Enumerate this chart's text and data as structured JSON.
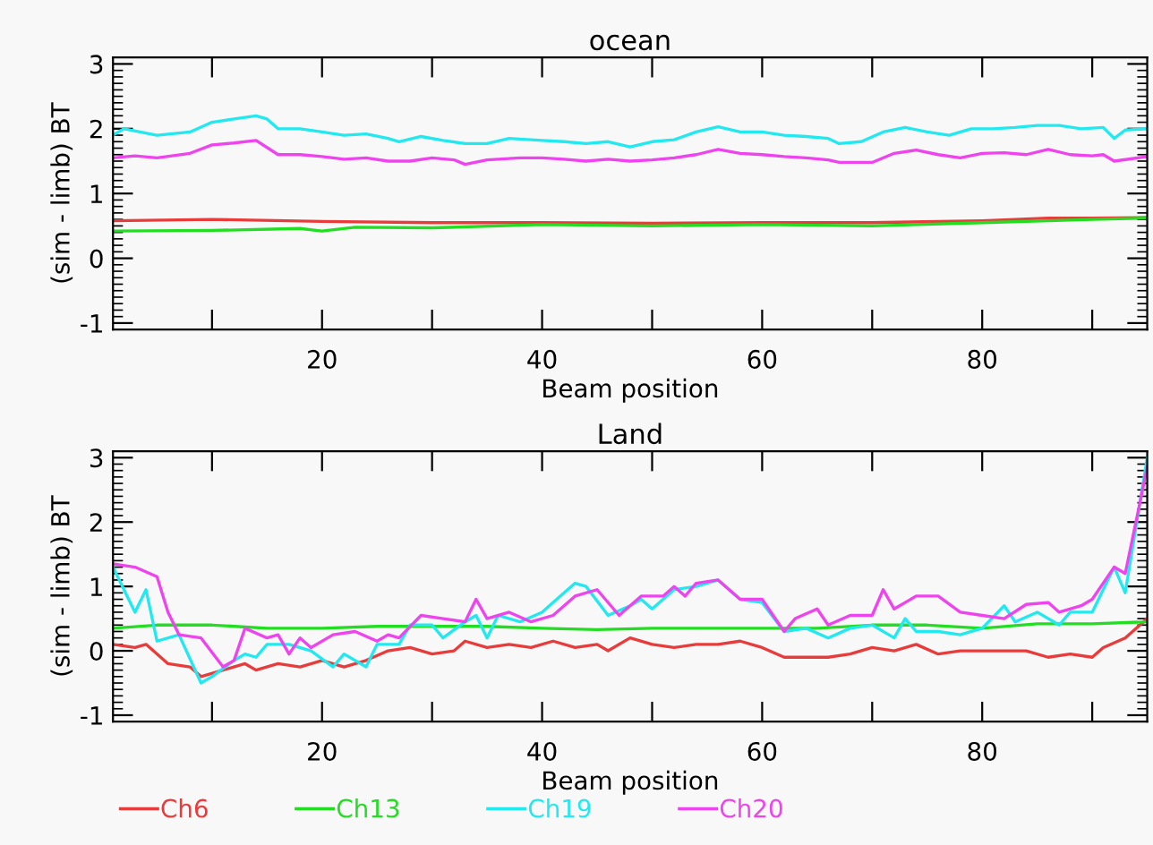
{
  "chart_data": [
    {
      "type": "line",
      "title": "ocean",
      "xlabel": "Beam position",
      "ylabel": "(sim - limb) BT",
      "xlim": [
        1,
        95
      ],
      "ylim": [
        -1.1,
        3.1
      ],
      "xticks": [
        {
          "value": 10,
          "label": null
        },
        20,
        {
          "value": 30,
          "label": null
        },
        40,
        {
          "value": 50,
          "label": null
        },
        60,
        {
          "value": 70,
          "label": null
        },
        80,
        {
          "value": 90,
          "label": null
        }
      ],
      "yticks": [
        -1,
        0,
        1,
        2,
        3
      ],
      "grid": false,
      "legend": false,
      "series": [
        {
          "color": "#e83c3c",
          "x": [
            1,
            10,
            20,
            30,
            40,
            50,
            60,
            70,
            80,
            86,
            90,
            95
          ],
          "values": [
            0.58,
            0.6,
            0.57,
            0.55,
            0.55,
            0.54,
            0.55,
            0.55,
            0.58,
            0.62,
            0.62,
            0.63
          ]
        },
        {
          "color": "#22dd22",
          "x": [
            1,
            10,
            18,
            20,
            23,
            30,
            40,
            50,
            60,
            70,
            80,
            86,
            90,
            95
          ],
          "values": [
            0.42,
            0.43,
            0.46,
            0.42,
            0.48,
            0.47,
            0.52,
            0.5,
            0.52,
            0.5,
            0.55,
            0.58,
            0.6,
            0.62
          ]
        },
        {
          "color": "#22e8f0",
          "x": [
            1,
            2,
            5,
            8,
            10,
            12,
            14,
            15,
            16,
            18,
            20,
            22,
            24,
            26,
            27,
            29,
            31,
            33,
            35,
            37,
            40,
            42,
            44,
            46,
            48,
            50,
            52,
            54,
            56,
            58,
            60,
            62,
            64,
            66,
            67,
            69,
            71,
            73,
            75,
            77,
            79,
            81,
            83,
            85,
            87,
            89,
            91,
            92,
            93,
            95
          ],
          "values": [
            1.9,
            2.0,
            1.9,
            1.95,
            2.1,
            2.15,
            2.2,
            2.15,
            2.0,
            2.0,
            1.95,
            1.9,
            1.92,
            1.85,
            1.8,
            1.88,
            1.82,
            1.77,
            1.77,
            1.85,
            1.82,
            1.8,
            1.77,
            1.8,
            1.72,
            1.8,
            1.83,
            1.95,
            2.03,
            1.95,
            1.95,
            1.9,
            1.88,
            1.85,
            1.77,
            1.8,
            1.95,
            2.02,
            1.95,
            1.9,
            2.0,
            2.0,
            2.02,
            2.05,
            2.05,
            2.0,
            2.02,
            1.85,
            1.98,
            2.0
          ]
        },
        {
          "color": "#ee44ee",
          "x": [
            1,
            3,
            5,
            8,
            10,
            12,
            14,
            16,
            18,
            20,
            22,
            24,
            26,
            28,
            30,
            32,
            33,
            35,
            38,
            40,
            42,
            44,
            46,
            48,
            50,
            52,
            54,
            56,
            58,
            60,
            62,
            64,
            66,
            67,
            70,
            72,
            74,
            76,
            78,
            80,
            82,
            84,
            86,
            88,
            90,
            91,
            92,
            95
          ],
          "values": [
            1.55,
            1.58,
            1.55,
            1.62,
            1.75,
            1.78,
            1.82,
            1.6,
            1.6,
            1.57,
            1.53,
            1.55,
            1.5,
            1.5,
            1.55,
            1.52,
            1.45,
            1.52,
            1.55,
            1.55,
            1.53,
            1.5,
            1.53,
            1.5,
            1.52,
            1.55,
            1.6,
            1.68,
            1.62,
            1.6,
            1.57,
            1.55,
            1.52,
            1.48,
            1.48,
            1.62,
            1.67,
            1.6,
            1.55,
            1.62,
            1.63,
            1.6,
            1.68,
            1.6,
            1.58,
            1.6,
            1.5,
            1.57
          ]
        }
      ]
    },
    {
      "type": "line",
      "title": "Land",
      "xlabel": "Beam position",
      "ylabel": "(sim - limb) BT",
      "xlim": [
        1,
        95
      ],
      "ylim": [
        -1.1,
        3.1
      ],
      "xticks": [
        {
          "value": 10,
          "label": null
        },
        20,
        {
          "value": 30,
          "label": null
        },
        40,
        {
          "value": 50,
          "label": null
        },
        60,
        {
          "value": 70,
          "label": null
        },
        80,
        {
          "value": 90,
          "label": null
        }
      ],
      "yticks": [
        -1,
        0,
        1,
        2,
        3
      ],
      "grid": false,
      "legend": "bottom",
      "series": [
        {
          "name": "Ch6",
          "color": "#e83c3c",
          "x": [
            1,
            3,
            4,
            6,
            8,
            9,
            11,
            13,
            14,
            16,
            18,
            20,
            22,
            24,
            26,
            28,
            30,
            32,
            33,
            35,
            37,
            39,
            41,
            43,
            45,
            46,
            48,
            50,
            52,
            54,
            56,
            58,
            60,
            62,
            64,
            66,
            68,
            70,
            72,
            74,
            76,
            78,
            80,
            82,
            84,
            86,
            88,
            90,
            91,
            93,
            95
          ],
          "values": [
            0.1,
            0.05,
            0.1,
            -0.2,
            -0.25,
            -0.4,
            -0.3,
            -0.2,
            -0.3,
            -0.2,
            -0.25,
            -0.15,
            -0.25,
            -0.15,
            0.0,
            0.05,
            -0.05,
            0.0,
            0.15,
            0.05,
            0.1,
            0.05,
            0.15,
            0.05,
            0.1,
            0.0,
            0.2,
            0.1,
            0.05,
            0.1,
            0.1,
            0.15,
            0.05,
            -0.1,
            -0.1,
            -0.1,
            -0.05,
            0.05,
            0.0,
            0.1,
            -0.05,
            0.0,
            0.0,
            0.0,
            0.0,
            -0.1,
            -0.05,
            -0.1,
            0.05,
            0.2,
            0.5
          ]
        },
        {
          "name": "Ch13",
          "color": "#22dd22",
          "x": [
            1,
            5,
            10,
            15,
            20,
            25,
            30,
            35,
            40,
            45,
            50,
            55,
            60,
            65,
            70,
            75,
            80,
            85,
            90,
            95
          ],
          "values": [
            0.35,
            0.4,
            0.4,
            0.35,
            0.35,
            0.38,
            0.38,
            0.38,
            0.35,
            0.33,
            0.35,
            0.35,
            0.35,
            0.35,
            0.4,
            0.4,
            0.35,
            0.42,
            0.42,
            0.45
          ]
        },
        {
          "name": "Ch19",
          "color": "#22e8f0",
          "x": [
            1,
            3,
            4,
            5,
            7,
            9,
            10,
            12,
            13,
            14,
            15,
            17,
            19,
            21,
            22,
            24,
            25,
            27,
            28,
            30,
            31,
            33,
            34,
            35,
            36,
            38,
            40,
            41,
            43,
            44,
            46,
            48,
            49,
            50,
            52,
            54,
            56,
            58,
            60,
            62,
            64,
            66,
            68,
            70,
            72,
            73,
            74,
            76,
            78,
            80,
            82,
            83,
            85,
            87,
            88,
            90,
            92,
            93,
            95
          ],
          "values": [
            1.3,
            0.6,
            0.95,
            0.15,
            0.25,
            -0.5,
            -0.4,
            -0.15,
            -0.05,
            -0.1,
            0.1,
            0.1,
            0.0,
            -0.25,
            -0.05,
            -0.25,
            0.1,
            0.1,
            0.4,
            0.4,
            0.2,
            0.45,
            0.55,
            0.2,
            0.55,
            0.45,
            0.6,
            0.75,
            1.05,
            1.0,
            0.55,
            0.7,
            0.8,
            0.65,
            0.95,
            1.0,
            1.1,
            0.8,
            0.75,
            0.3,
            0.35,
            0.2,
            0.35,
            0.4,
            0.2,
            0.5,
            0.3,
            0.3,
            0.25,
            0.35,
            0.7,
            0.45,
            0.6,
            0.4,
            0.6,
            0.6,
            1.3,
            0.9,
            3.0
          ]
        },
        {
          "name": "Ch20",
          "color": "#ee44ee",
          "x": [
            1,
            3,
            5,
            6,
            7,
            9,
            11,
            12,
            13,
            15,
            16,
            17,
            18,
            19,
            21,
            23,
            25,
            26,
            27,
            29,
            31,
            33,
            34,
            35,
            37,
            39,
            41,
            43,
            45,
            47,
            49,
            51,
            52,
            53,
            54,
            56,
            58,
            60,
            62,
            63,
            65,
            66,
            68,
            70,
            71,
            72,
            74,
            76,
            78,
            80,
            82,
            84,
            86,
            87,
            89,
            90,
            92,
            93,
            95
          ],
          "values": [
            1.35,
            1.3,
            1.15,
            0.6,
            0.25,
            0.2,
            -0.25,
            -0.15,
            0.35,
            0.2,
            0.25,
            -0.05,
            0.2,
            0.05,
            0.25,
            0.3,
            0.15,
            0.25,
            0.2,
            0.55,
            0.5,
            0.45,
            0.8,
            0.5,
            0.6,
            0.45,
            0.55,
            0.85,
            0.95,
            0.55,
            0.85,
            0.85,
            1.0,
            0.85,
            1.05,
            1.1,
            0.8,
            0.8,
            0.3,
            0.5,
            0.65,
            0.4,
            0.55,
            0.55,
            0.95,
            0.65,
            0.85,
            0.85,
            0.6,
            0.55,
            0.5,
            0.72,
            0.75,
            0.6,
            0.7,
            0.8,
            1.3,
            1.2,
            2.85
          ]
        }
      ]
    }
  ]
}
